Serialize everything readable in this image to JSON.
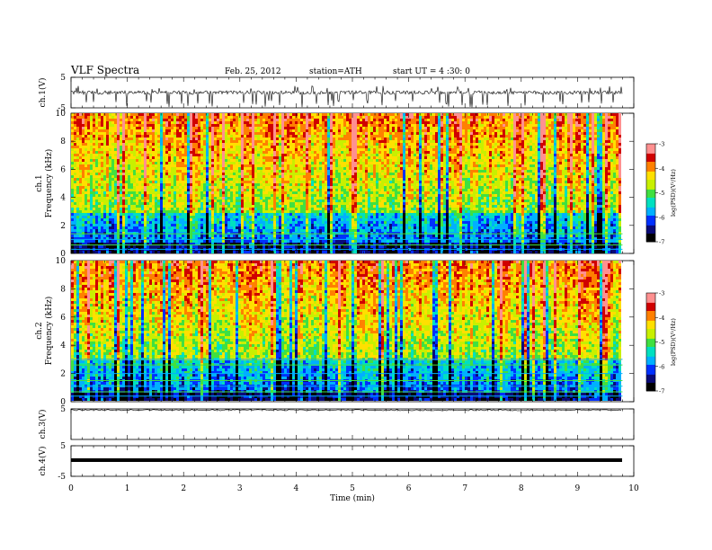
{
  "header": {
    "title": "VLF  Spectra",
    "date": "Feb. 25, 2012",
    "station": "station=ATH",
    "start": "start  UT  =   4  :30: 0"
  },
  "colors": {
    "colormap": [
      "#000000",
      "#0a0a78",
      "#0030ff",
      "#00b0ff",
      "#00e0c0",
      "#40e040",
      "#c8f000",
      "#ffe000",
      "#ff8000",
      "#d00000",
      "#ff9090",
      "#ffffff"
    ],
    "frame": "#000000",
    "trace": "#000000"
  },
  "chart_data": [
    {
      "type": "line",
      "name": "ch.1 waveform",
      "ylabel": "ch.1(V)",
      "ylim": [
        -5,
        5
      ],
      "yticks": [
        "5",
        "-5"
      ],
      "xlim": [
        0,
        10
      ],
      "baseline": 0,
      "description_hint": "noisy trace around 0 V with frequent negative spikes"
    },
    {
      "type": "heatmap",
      "name": "ch.1 spectrogram",
      "ylabel": "ch.1\nFrequency (kHz)",
      "ylabel_line1": "ch.1",
      "ylabel_line2": "Frequency  (kHz)",
      "ylim": [
        0,
        10
      ],
      "yticks": [
        "0",
        "2",
        "4",
        "6",
        "8",
        "10"
      ],
      "xlim": [
        0,
        9.8
      ],
      "colorbar": {
        "label": "log(PSD)(V²/Hz)",
        "range": [
          -7,
          -3
        ],
        "ticks": [
          "-3",
          "-4",
          "-5",
          "-6",
          "-7"
        ]
      }
    },
    {
      "type": "heatmap",
      "name": "ch.2 spectrogram",
      "ylabel_line1": "ch.2",
      "ylabel_line2": "Frequency  (kHz)",
      "ylim": [
        0,
        10
      ],
      "yticks": [
        "0",
        "2",
        "4",
        "6",
        "8",
        "10"
      ],
      "xlim": [
        0,
        9.8
      ],
      "colorbar": {
        "label": "log(PSD)(V²/Hz)",
        "range": [
          -7,
          -3
        ],
        "ticks": [
          "-3",
          "-4",
          "-5",
          "-6",
          "-7"
        ]
      }
    },
    {
      "type": "line",
      "name": "ch.3 waveform",
      "ylabel": "ch.3(V)",
      "ylim": [
        -5,
        5
      ],
      "yticks": [
        "5"
      ],
      "baseline": 5
    },
    {
      "type": "line",
      "name": "ch.4 waveform",
      "ylabel": "ch.4(V)",
      "ylim": [
        -5,
        5
      ],
      "yticks": [
        "5",
        "-5"
      ],
      "baseline": 0
    }
  ],
  "xaxis": {
    "label": "Time  (min)",
    "range": [
      0,
      10
    ],
    "ticks": [
      "0",
      "1",
      "2",
      "3",
      "4",
      "5",
      "6",
      "7",
      "8",
      "9",
      "10"
    ]
  }
}
